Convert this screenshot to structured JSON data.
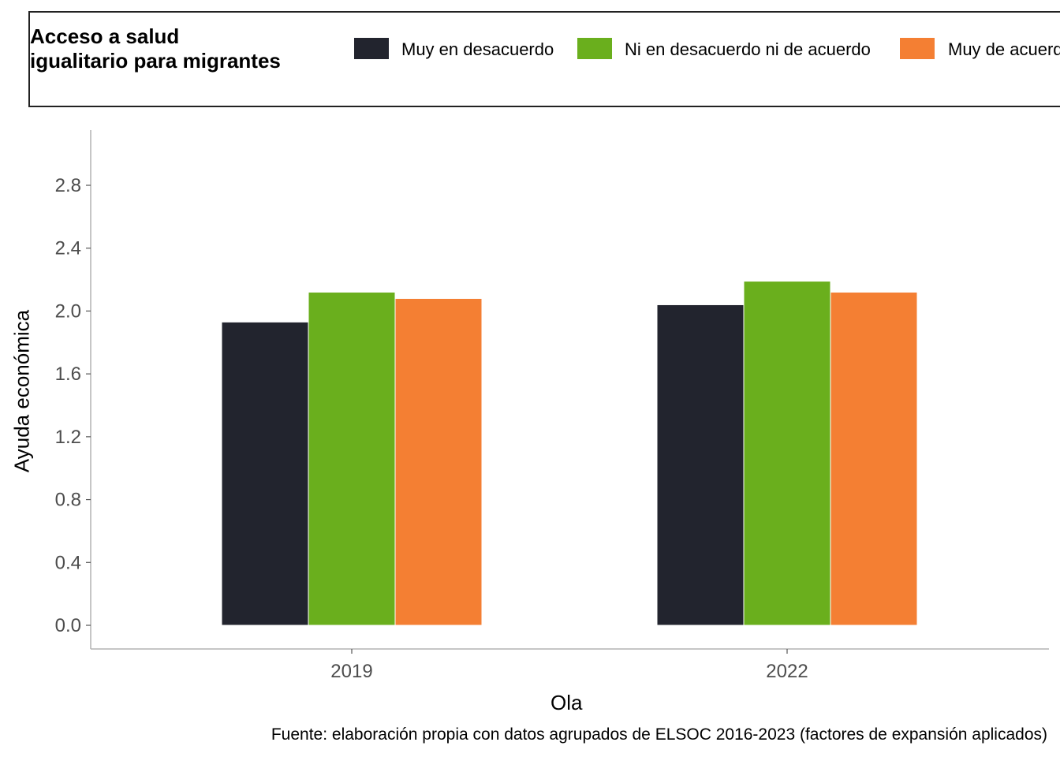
{
  "legend": {
    "title": "Acceso a salud\nigualitario para migrantes",
    "items": [
      {
        "label": "Muy en desacuerdo",
        "color": "#22242E"
      },
      {
        "label": "Ni en desacuerdo ni de acuerdo",
        "color": "#6AAF1D"
      },
      {
        "label": "Muy de acuerdo",
        "color": "#F47F33"
      }
    ]
  },
  "caption": "Fuente: elaboración propia con datos agrupados de ELSOC 2016-2023 (factores de expansión aplicados)",
  "chart_data": {
    "type": "bar",
    "xlabel": "Ola",
    "ylabel": "Ayuda económica",
    "categories": [
      "2019",
      "2022"
    ],
    "series": [
      {
        "name": "Muy en desacuerdo",
        "values": [
          1.93,
          2.04
        ]
      },
      {
        "name": "Ni en desacuerdo ni de acuerdo",
        "values": [
          2.12,
          2.19
        ]
      },
      {
        "name": "Muy de acuerdo",
        "values": [
          2.08,
          2.12
        ]
      }
    ],
    "ylim": [
      -0.15,
      3.15
    ],
    "yticks": [
      "0.0",
      "0.4",
      "0.8",
      "1.2",
      "1.6",
      "2.0",
      "2.4",
      "2.8"
    ],
    "grid": false,
    "legend_position": "top"
  }
}
